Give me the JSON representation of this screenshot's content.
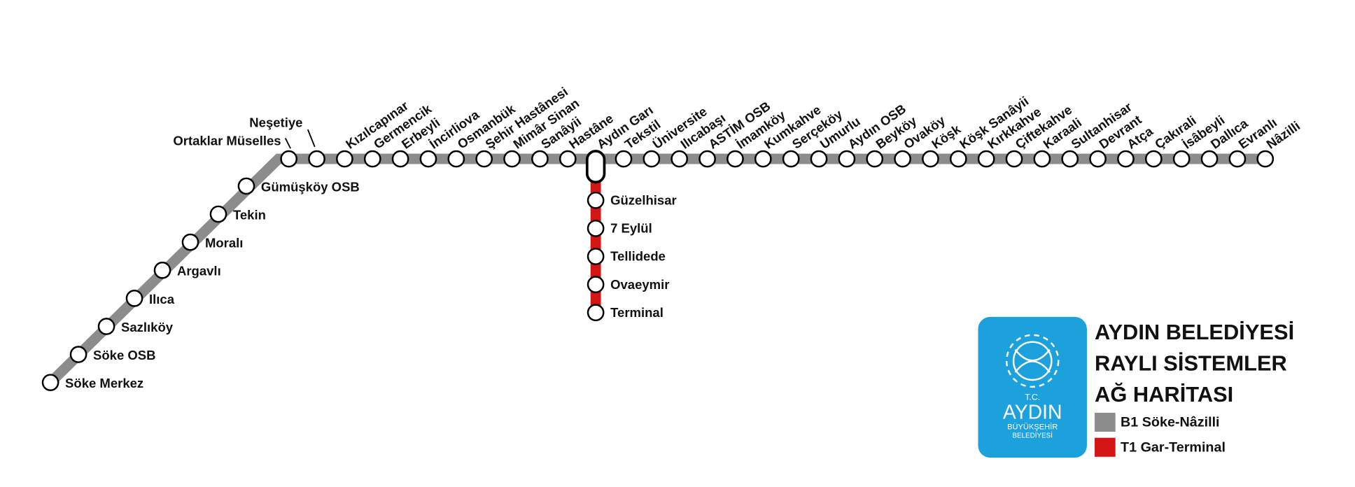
{
  "title_lines": [
    "AYDIN BELEDİYESİ",
    "RAYLI SİSTEMLER",
    "AĞ HARİTASI"
  ],
  "legend": [
    {
      "name": "B1 Söke-Nâzilli",
      "color": "#8c8c8c"
    },
    {
      "name": "T1 Gar-Terminal",
      "color": "#d41515"
    }
  ],
  "logo": {
    "prefix": "T.C.",
    "name": "AYDIN",
    "sub1": "BÜYÜKŞEHİR",
    "sub2": "BELEDİYESİ",
    "color": "#1da1dc"
  },
  "lines": {
    "B1": {
      "stations": [
        "Söke Merkez",
        "Söke OSB",
        "Sazlıköy",
        "Ilıca",
        "Argavlı",
        "Moralı",
        "Tekin",
        "Gümüşköy OSB",
        "Ortaklar Müselles",
        "Neşetiye",
        "Kızılcapınar",
        "Germencik",
        "Erbeyli",
        "İncirliova",
        "Osmanbük",
        "Şehir Hastânesi",
        "Mimâr Sinan",
        "Sanâyii",
        "Hastâne",
        "Aydın Garı",
        "Tekstil",
        "Üniversite",
        "Ilıcabaşı",
        "ASTİM OSB",
        "İmamköy",
        "Kumkahve",
        "Serçeköy",
        "Umurlu",
        "Aydın OSB",
        "Beyköy",
        "Ovaköy",
        "Köşk",
        "Köşk Sanâyii",
        "Kırkkahve",
        "Çiftekahve",
        "Karaali",
        "Sultanhisar",
        "Devrant",
        "Atça",
        "Çakırali",
        "İsâbeyli",
        "Dallıca",
        "Evranlı",
        "Nâzilli"
      ]
    },
    "T1": {
      "stations": [
        "Güzelhisar",
        "7 Eylül",
        "Tellidede",
        "Ovaeymir",
        "Terminal"
      ]
    }
  }
}
